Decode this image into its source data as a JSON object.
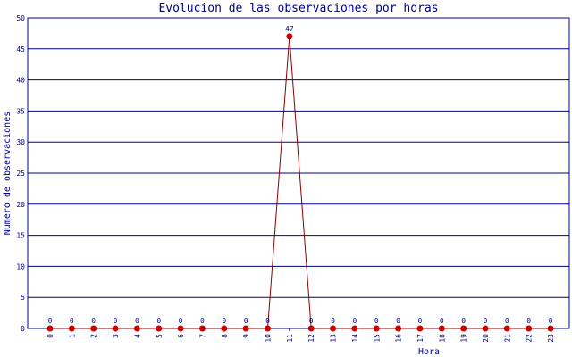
{
  "chart_data": {
    "type": "line",
    "title": "Evolucion de las observaciones por horas",
    "xlabel": "Hora",
    "ylabel": "Numero de observaciones",
    "categories": [
      "0",
      "1",
      "2",
      "3",
      "4",
      "5",
      "6",
      "7",
      "8",
      "9",
      "10",
      "11",
      "12",
      "13",
      "14",
      "15",
      "16",
      "17",
      "18",
      "19",
      "20",
      "21",
      "22",
      "23"
    ],
    "series": [
      {
        "values": [
          0,
          0,
          0,
          0,
          0,
          0,
          0,
          0,
          0,
          0,
          0,
          47,
          0,
          0,
          0,
          0,
          0,
          0,
          0,
          0,
          0,
          0,
          0,
          0
        ]
      }
    ],
    "ylim": [
      0,
      50
    ],
    "yticks": [
      "0",
      "5",
      "10",
      "15",
      "20",
      "25",
      "30",
      "35",
      "40",
      "45",
      "50"
    ],
    "grid": true,
    "legend": "none",
    "colors": {
      "line": "#8b0000",
      "marker": "#cc0000",
      "grid": "#00008b",
      "text": "#00008b"
    }
  }
}
